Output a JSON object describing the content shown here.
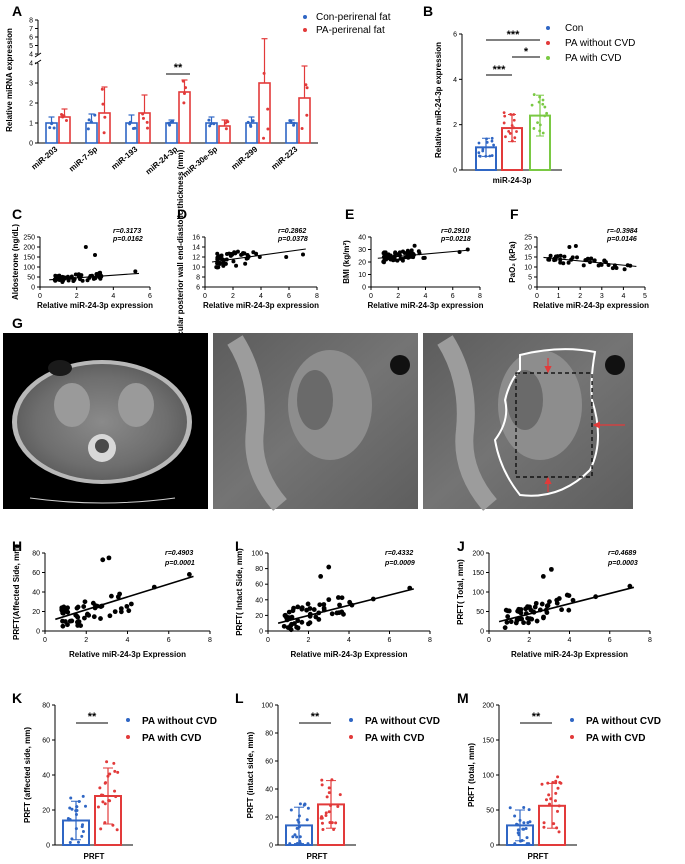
{
  "panels": {
    "A": "A",
    "B": "B",
    "C": "C",
    "D": "D",
    "E": "E",
    "F": "F",
    "G": "G",
    "H": "H",
    "I": "I",
    "J": "J",
    "K": "K",
    "L": "L",
    "M": "M"
  },
  "colors": {
    "blue": "#2f66c4",
    "red": "#e23a3a",
    "green": "#7ac943"
  },
  "chart_data": [
    {
      "id": "A",
      "type": "bar",
      "ylabel": "Relative miRNA expression",
      "categories": [
        "miR-203",
        "miR-7-5p",
        "miR-193",
        "miR-24-3p",
        "miR-30e-5p",
        "miR-299",
        "miR-223"
      ],
      "series": [
        {
          "name": "Con-perirenal fat",
          "values": [
            1.0,
            1.0,
            1.0,
            1.0,
            1.0,
            1.0,
            1.0
          ],
          "err": [
            0.3,
            0.45,
            0.4,
            0.15,
            0.3,
            0.3,
            0.15
          ]
        },
        {
          "name": "PA-perirenal fat",
          "values": [
            1.3,
            1.5,
            1.5,
            2.55,
            0.85,
            3.0,
            2.25
          ],
          "err": [
            0.4,
            1.3,
            0.9,
            0.6,
            0.3,
            2.8,
            1.6
          ]
        }
      ],
      "yticks_lower": [
        "0",
        "1",
        "2",
        "3",
        "4"
      ],
      "yticks_upper": [
        "4",
        "5",
        "6",
        "7",
        "8"
      ],
      "annotations": [
        {
          "between": "miR-24-3p",
          "text": "**"
        }
      ]
    },
    {
      "id": "B",
      "type": "bar",
      "ylabel": "Relative miR-24-3p expression",
      "xlabel": "miR-24-3p",
      "ylim": [
        0,
        6
      ],
      "yticks": [
        "0",
        "2",
        "4",
        "6"
      ],
      "series": [
        {
          "name": "Con",
          "values": [
            1.0
          ],
          "err": [
            0.4
          ]
        },
        {
          "name": "PA without CVD",
          "values": [
            1.85
          ],
          "err": [
            0.6
          ]
        },
        {
          "name": "PA with CVD",
          "values": [
            2.4
          ],
          "err": [
            0.9
          ]
        }
      ],
      "annotations": [
        "***",
        "*",
        "***"
      ]
    },
    {
      "id": "C",
      "type": "scatter",
      "xlabel": "Relative miR-24-3p expression",
      "ylabel": "Aldosterone (ng/dL)",
      "xlim": [
        0,
        6
      ],
      "ylim": [
        0,
        250
      ],
      "xticks": [
        "0",
        "2",
        "4",
        "6"
      ],
      "yticks": [
        "0",
        "50",
        "100",
        "150",
        "200",
        "250"
      ],
      "stats": [
        "r=0.3173",
        "p=0.0162"
      ]
    },
    {
      "id": "D",
      "type": "scatter",
      "xlabel": "Relative miR-24-3p expression",
      "ylabel": "Left ventricular posterior wall end-diastolic thickness (mm)",
      "xlim": [
        0,
        8
      ],
      "ylim": [
        6,
        16
      ],
      "xticks": [
        "0",
        "2",
        "4",
        "6",
        "8"
      ],
      "yticks": [
        "6",
        "8",
        "10",
        "12",
        "14",
        "16"
      ],
      "stats": [
        "r=0.2862",
        "p=0.0378"
      ]
    },
    {
      "id": "E",
      "type": "scatter",
      "xlabel": "Relative miR-24-3p expression",
      "ylabel": "BMI (kg/m²)",
      "xlim": [
        0,
        8
      ],
      "ylim": [
        0,
        40
      ],
      "xticks": [
        "0",
        "2",
        "4",
        "6",
        "8"
      ],
      "yticks": [
        "0",
        "10",
        "20",
        "30",
        "40"
      ],
      "stats": [
        "r=0.2910",
        "p=0.0218"
      ]
    },
    {
      "id": "F",
      "type": "scatter",
      "xlabel": "Relative miR-24-3p expression",
      "ylabel": "PaO₂ (kPa)",
      "xlim": [
        0,
        5
      ],
      "ylim": [
        0,
        25
      ],
      "xticks": [
        "0",
        "1",
        "2",
        "3",
        "4",
        "5"
      ],
      "yticks": [
        "0",
        "5",
        "10",
        "15",
        "20",
        "25"
      ],
      "stats": [
        "r=-0.3984",
        "p=0.0146"
      ]
    },
    {
      "id": "H",
      "type": "scatter",
      "xlabel": "Relative miR-24-3p Expression",
      "ylabel": "PRFT(Affected Side, mm)",
      "xlim": [
        0,
        8
      ],
      "ylim": [
        0,
        80
      ],
      "xticks": [
        "0",
        "2",
        "4",
        "6",
        "8"
      ],
      "yticks": [
        "0",
        "20",
        "40",
        "60",
        "80"
      ],
      "stats": [
        "r=0.4903",
        "p=0.0001"
      ]
    },
    {
      "id": "I",
      "type": "scatter",
      "xlabel": "Relative miR-24-3p Expression",
      "ylabel": "PRFT( Intact Side, mm)",
      "xlim": [
        0,
        8
      ],
      "ylim": [
        0,
        100
      ],
      "xticks": [
        "0",
        "2",
        "4",
        "6",
        "8"
      ],
      "yticks": [
        "0",
        "20",
        "40",
        "60",
        "80",
        "100"
      ],
      "stats": [
        "r=0.4332",
        "p=0.0009"
      ]
    },
    {
      "id": "J",
      "type": "scatter",
      "xlabel": "Relative miR-24-3p Expression",
      "ylabel": "PRFT( Total, mm)",
      "xlim": [
        0,
        8
      ],
      "ylim": [
        0,
        200
      ],
      "xticks": [
        "0",
        "2",
        "4",
        "6",
        "8"
      ],
      "yticks": [
        "0",
        "50",
        "100",
        "150",
        "200"
      ],
      "stats": [
        "r=0.4689",
        "p=0.0003"
      ]
    },
    {
      "id": "K",
      "type": "bar",
      "xlabel": "PRFT",
      "ylabel": "PRFT (affected side, mm)",
      "ylim": [
        0,
        80
      ],
      "yticks": [
        "0",
        "20",
        "40",
        "60",
        "80"
      ],
      "series": [
        {
          "name": "PA without CVD",
          "values": [
            14
          ],
          "err": [
            11
          ]
        },
        {
          "name": "PA with CVD",
          "values": [
            28
          ],
          "err": [
            16
          ]
        }
      ],
      "annotations": [
        "**"
      ]
    },
    {
      "id": "L",
      "type": "bar",
      "xlabel": "PRFT",
      "ylabel": "PRFT (intact side, mm)",
      "ylim": [
        0,
        100
      ],
      "yticks": [
        "0",
        "20",
        "40",
        "60",
        "80",
        "100"
      ],
      "series": [
        {
          "name": "PA without CVD",
          "values": [
            14
          ],
          "err": [
            13
          ]
        },
        {
          "name": "PA with CVD",
          "values": [
            29
          ],
          "err": [
            17
          ]
        }
      ],
      "annotations": [
        "**"
      ]
    },
    {
      "id": "M",
      "type": "bar",
      "xlabel": "PRFT",
      "ylabel": "PRFT (total, mm)",
      "ylim": [
        0,
        200
      ],
      "yticks": [
        "0",
        "50",
        "100",
        "150",
        "200"
      ],
      "series": [
        {
          "name": "PA without CVD",
          "values": [
            28
          ],
          "err": [
            22
          ]
        },
        {
          "name": "PA with CVD",
          "values": [
            56
          ],
          "err": [
            32
          ]
        }
      ],
      "annotations": [
        "**"
      ]
    }
  ]
}
